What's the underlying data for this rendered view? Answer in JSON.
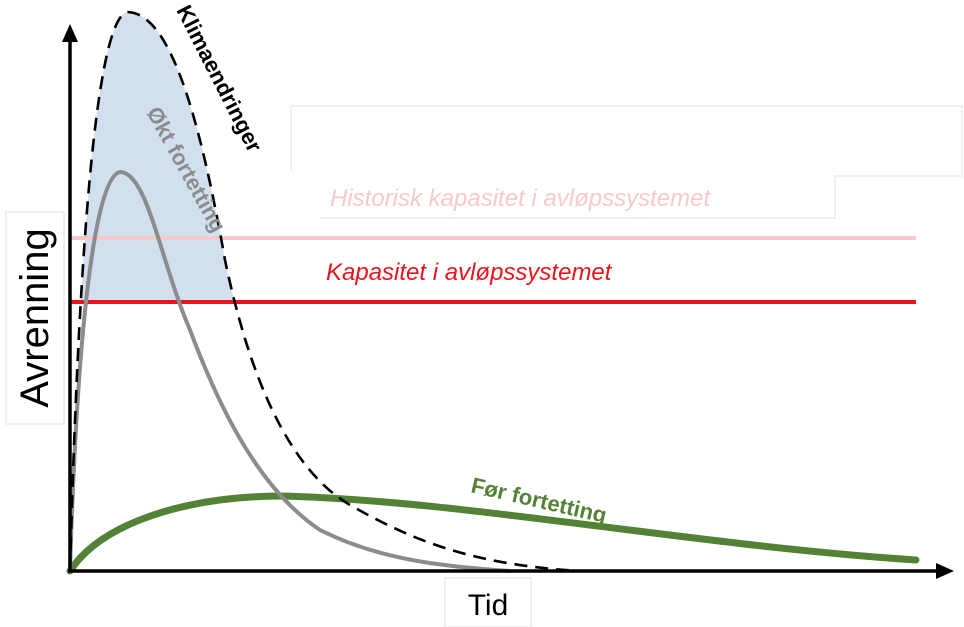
{
  "chart_data": {
    "type": "line",
    "xlabel": "Tid",
    "ylabel": "Avrenning",
    "x_ticks": [],
    "y_ticks": [],
    "horizontal_lines": [
      {
        "name": "Kapasitet i avløpssystemet",
        "color": "#e8141c"
      },
      {
        "name": "Historisk kapasitet i avløpssystemet",
        "color": "#f6c9cc"
      }
    ],
    "series": [
      {
        "name": "Klimaendringer",
        "style": "dashed",
        "color": "#000000"
      },
      {
        "name": "Økt fortetting",
        "style": "solid",
        "color": "#8c8c8c"
      },
      {
        "name": "Før fortetting",
        "style": "solid",
        "color": "#538135"
      }
    ],
    "exceedance_fill_color": "#c9d9ec"
  }
}
